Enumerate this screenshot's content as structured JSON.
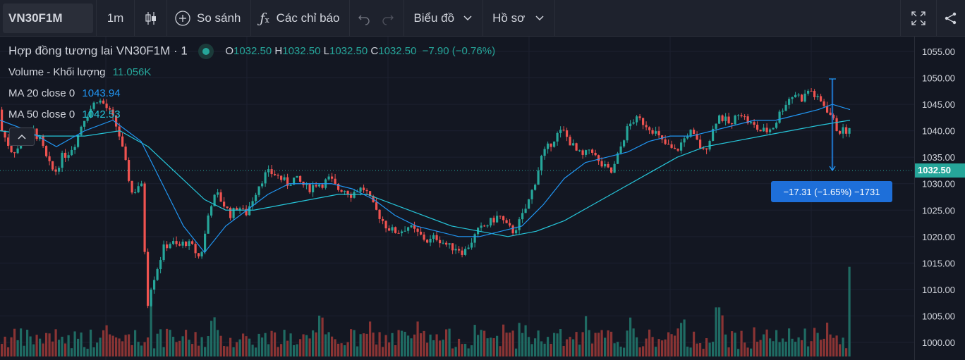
{
  "toolbar": {
    "symbol": "VN30F1M",
    "interval": "1m",
    "compare_label": "So sánh",
    "indicators_label": "Các chỉ báo",
    "chart_type_label": "Biểu đồ",
    "profile_label": "Hồ sơ"
  },
  "legend": {
    "title": "Hợp đồng tương lai VN30F1M · 1",
    "o_label": "O",
    "o_value": "1032.50",
    "h_label": "H",
    "h_value": "1032.50",
    "l_label": "L",
    "l_value": "1032.50",
    "c_label": "C",
    "c_value": "1032.50",
    "change": "−7.90 (−0.76%)",
    "volume_label": "Volume - Khối lượng",
    "volume_value": "11.056K",
    "ma20_label": "MA 20 close 0",
    "ma20_value": "1043.94",
    "ma50_label": "MA 50 close 0",
    "ma50_value": "1042.53"
  },
  "price_axis": {
    "ticks": [
      "1055.00",
      "1050.00",
      "1045.00",
      "1040.00",
      "1035.00",
      "1030.00",
      "1025.00",
      "1020.00",
      "1015.00",
      "1010.00",
      "1005.00",
      "1000.00"
    ],
    "current_price": "1032.50"
  },
  "measure": {
    "text": "−17.31 (−1.65%) −1731"
  },
  "colors": {
    "up": "#26a69a",
    "down": "#ef5350",
    "ma20": "#2196f3",
    "ma50": "#26c6da",
    "background": "#131722"
  },
  "chart_data": {
    "type": "candlestick",
    "symbol": "VN30F1M",
    "interval": "1m",
    "ylim": [
      998,
      1057
    ],
    "price_path": [
      [
        0,
        1044
      ],
      [
        5,
        1040
      ],
      [
        12,
        1038
      ],
      [
        20,
        1036
      ],
      [
        30,
        1037
      ],
      [
        40,
        1039
      ],
      [
        50,
        1040
      ],
      [
        60,
        1038
      ],
      [
        70,
        1034
      ],
      [
        80,
        1032
      ],
      [
        90,
        1035
      ],
      [
        100,
        1036
      ],
      [
        110,
        1038
      ],
      [
        120,
        1042
      ],
      [
        130,
        1044
      ],
      [
        140,
        1046
      ],
      [
        150,
        1045
      ],
      [
        160,
        1043
      ],
      [
        170,
        1040
      ],
      [
        180,
        1034
      ],
      [
        190,
        1028
      ],
      [
        200,
        1030
      ],
      [
        205,
        1029
      ],
      [
        210,
        1006
      ],
      [
        215,
        1010
      ],
      [
        225,
        1014
      ],
      [
        235,
        1018
      ],
      [
        245,
        1019
      ],
      [
        255,
        1018
      ],
      [
        265,
        1019
      ],
      [
        275,
        1018
      ],
      [
        285,
        1016
      ],
      [
        290,
        1018
      ],
      [
        300,
        1026
      ],
      [
        310,
        1028
      ],
      [
        320,
        1026
      ],
      [
        330,
        1024
      ],
      [
        340,
        1026
      ],
      [
        350,
        1024
      ],
      [
        360,
        1027
      ],
      [
        370,
        1030
      ],
      [
        380,
        1032
      ],
      [
        390,
        1032
      ],
      [
        400,
        1031
      ],
      [
        410,
        1030
      ],
      [
        420,
        1031
      ],
      [
        430,
        1030
      ],
      [
        440,
        1029
      ],
      [
        450,
        1030
      ],
      [
        460,
        1030
      ],
      [
        470,
        1031
      ],
      [
        480,
        1029
      ],
      [
        490,
        1029
      ],
      [
        500,
        1028
      ],
      [
        510,
        1029
      ],
      [
        520,
        1029
      ],
      [
        530,
        1026
      ],
      [
        540,
        1024
      ],
      [
        550,
        1022
      ],
      [
        560,
        1021
      ],
      [
        570,
        1021
      ],
      [
        580,
        1022
      ],
      [
        590,
        1021
      ],
      [
        600,
        1020
      ],
      [
        610,
        1019
      ],
      [
        620,
        1020
      ],
      [
        630,
        1019
      ],
      [
        640,
        1018
      ],
      [
        650,
        1018
      ],
      [
        660,
        1017
      ],
      [
        670,
        1019
      ],
      [
        680,
        1021
      ],
      [
        690,
        1022
      ],
      [
        700,
        1023
      ],
      [
        710,
        1024
      ],
      [
        720,
        1022
      ],
      [
        730,
        1021
      ],
      [
        740,
        1023
      ],
      [
        750,
        1026
      ],
      [
        760,
        1030
      ],
      [
        770,
        1035
      ],
      [
        780,
        1037
      ],
      [
        790,
        1039
      ],
      [
        800,
        1040
      ],
      [
        810,
        1038
      ],
      [
        820,
        1036
      ],
      [
        830,
        1035
      ],
      [
        840,
        1037
      ],
      [
        850,
        1034
      ],
      [
        860,
        1033
      ],
      [
        870,
        1032
      ],
      [
        880,
        1036
      ],
      [
        890,
        1040
      ],
      [
        900,
        1042
      ],
      [
        910,
        1042
      ],
      [
        920,
        1041
      ],
      [
        930,
        1040
      ],
      [
        940,
        1038
      ],
      [
        950,
        1037
      ],
      [
        960,
        1036
      ],
      [
        970,
        1038
      ],
      [
        980,
        1040
      ],
      [
        990,
        1038
      ],
      [
        1000,
        1036
      ],
      [
        1010,
        1039
      ],
      [
        1020,
        1043
      ],
      [
        1030,
        1042
      ],
      [
        1040,
        1041
      ],
      [
        1050,
        1044
      ],
      [
        1060,
        1042
      ],
      [
        1070,
        1041
      ],
      [
        1080,
        1040
      ],
      [
        1090,
        1040
      ],
      [
        1100,
        1041
      ],
      [
        1110,
        1044
      ],
      [
        1120,
        1046
      ],
      [
        1130,
        1047
      ],
      [
        1140,
        1046
      ],
      [
        1150,
        1048
      ],
      [
        1160,
        1046
      ],
      [
        1170,
        1045
      ],
      [
        1180,
        1043
      ],
      [
        1190,
        1040
      ],
      [
        1198,
        1040
      ]
    ],
    "ma20": [
      [
        0,
        1042
      ],
      [
        40,
        1040
      ],
      [
        80,
        1037
      ],
      [
        120,
        1040
      ],
      [
        160,
        1042
      ],
      [
        200,
        1038
      ],
      [
        230,
        1030
      ],
      [
        260,
        1022
      ],
      [
        290,
        1017
      ],
      [
        320,
        1022
      ],
      [
        350,
        1025
      ],
      [
        380,
        1028
      ],
      [
        410,
        1030
      ],
      [
        440,
        1030
      ],
      [
        470,
        1030
      ],
      [
        500,
        1029
      ],
      [
        530,
        1027
      ],
      [
        560,
        1024
      ],
      [
        590,
        1022
      ],
      [
        620,
        1021
      ],
      [
        650,
        1020
      ],
      [
        680,
        1020
      ],
      [
        710,
        1021
      ],
      [
        740,
        1022
      ],
      [
        770,
        1026
      ],
      [
        800,
        1031
      ],
      [
        830,
        1034
      ],
      [
        860,
        1035
      ],
      [
        890,
        1036
      ],
      [
        920,
        1038
      ],
      [
        950,
        1039
      ],
      [
        980,
        1039
      ],
      [
        1010,
        1040
      ],
      [
        1040,
        1041
      ],
      [
        1070,
        1042
      ],
      [
        1100,
        1042
      ],
      [
        1130,
        1043
      ],
      [
        1160,
        1044
      ],
      [
        1180,
        1045
      ],
      [
        1205,
        1044
      ]
    ],
    "ma50": [
      [
        0,
        1040
      ],
      [
        60,
        1039
      ],
      [
        120,
        1039
      ],
      [
        170,
        1040
      ],
      [
        210,
        1037
      ],
      [
        250,
        1032
      ],
      [
        290,
        1027
      ],
      [
        320,
        1025
      ],
      [
        360,
        1025
      ],
      [
        400,
        1026
      ],
      [
        440,
        1027
      ],
      [
        480,
        1028
      ],
      [
        520,
        1028
      ],
      [
        560,
        1026
      ],
      [
        600,
        1024
      ],
      [
        640,
        1022
      ],
      [
        680,
        1021
      ],
      [
        720,
        1020
      ],
      [
        760,
        1021
      ],
      [
        800,
        1023
      ],
      [
        840,
        1026
      ],
      [
        880,
        1029
      ],
      [
        920,
        1032
      ],
      [
        960,
        1035
      ],
      [
        1000,
        1037
      ],
      [
        1040,
        1038
      ],
      [
        1080,
        1039
      ],
      [
        1120,
        1040
      ],
      [
        1160,
        1041
      ],
      [
        1205,
        1042
      ]
    ],
    "volume_ylim": [
      0,
      100
    ],
    "volume_peaks": [
      {
        "x": 213,
        "v": 62
      },
      {
        "x": 1016,
        "v": 52
      },
      {
        "x": 1204,
        "v": 95
      }
    ]
  }
}
